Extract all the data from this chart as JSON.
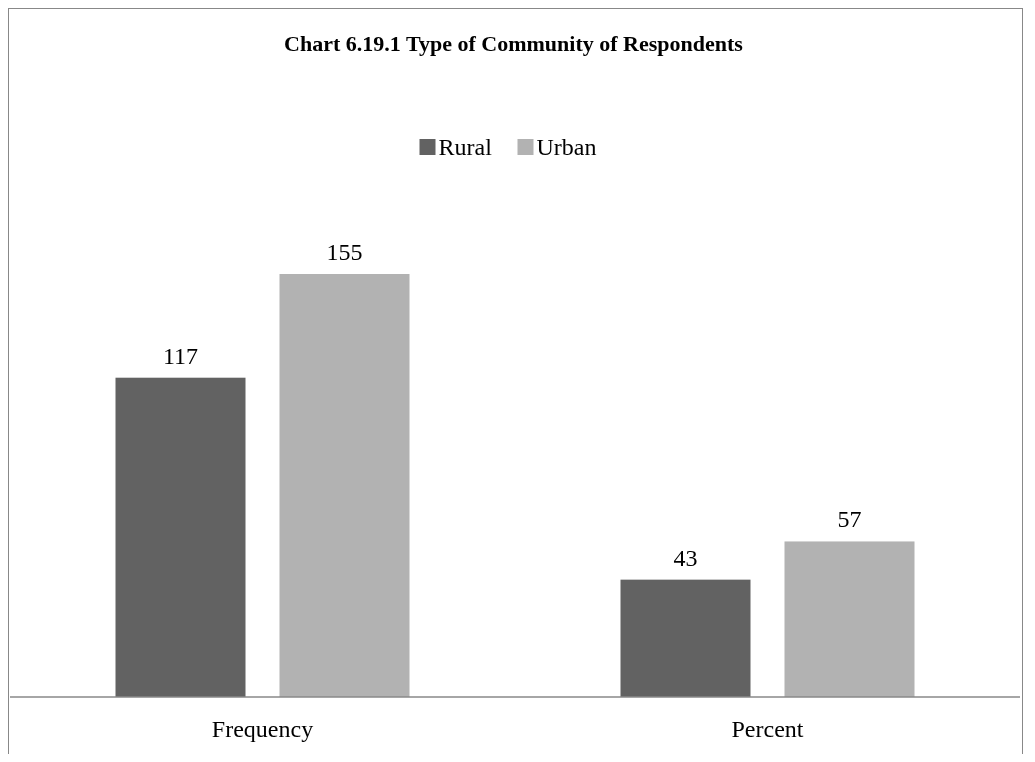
{
  "chart_data": {
    "type": "bar",
    "title": "Chart 6.19.1 Type of Community of Respondents",
    "categories": [
      "Frequency",
      "Percent"
    ],
    "series": [
      {
        "name": "Rural",
        "color": "#626262",
        "values": [
          117,
          43
        ]
      },
      {
        "name": "Urban",
        "color": "#b2b2b2",
        "values": [
          155,
          57
        ]
      }
    ],
    "data_labels": true,
    "legend": "top",
    "grid": false
  }
}
